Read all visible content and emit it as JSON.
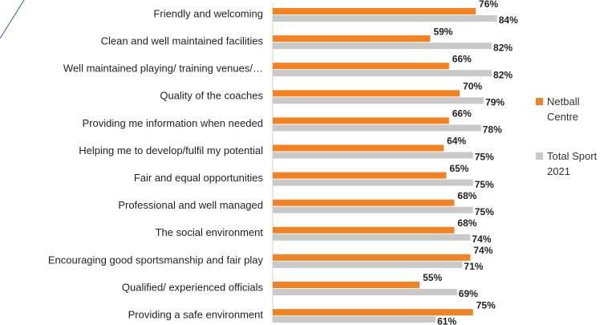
{
  "chart_data": {
    "type": "hbar",
    "categories": [
      "Friendly and welcoming",
      "Clean and well maintained facilities",
      "Well maintained playing/ training venues/…",
      "Quality of the coaches",
      "Providing me information when needed",
      "Helping me to develop/fulfil my potential",
      "Fair and equal opportunities",
      "Professional and well managed",
      "The social environment",
      "Encouraging good sportsmanship and fair play",
      "Qualified/ experienced officials",
      "Providing a safe environment"
    ],
    "series": [
      {
        "name": "Netball Centre",
        "color": "#f58220",
        "values": [
          76,
          59,
          66,
          70,
          66,
          64,
          65,
          68,
          68,
          74,
          55,
          75
        ],
        "value_labels": [
          "76%",
          "59%",
          "66%",
          "70%",
          "66%",
          "64%",
          "65%",
          "68%",
          "68%",
          "74%",
          "55%",
          "75%"
        ]
      },
      {
        "name": "Total Sport 2021",
        "color": "#c9c9c9",
        "values": [
          84,
          82,
          82,
          79,
          78,
          75,
          75,
          75,
          74,
          71,
          69,
          61
        ],
        "value_labels": [
          "84%",
          "82%",
          "82%",
          "79%",
          "78%",
          "75%",
          "75%",
          "75%",
          "74%",
          "71%",
          "69%",
          "61%"
        ]
      }
    ],
    "legend": "right"
  }
}
